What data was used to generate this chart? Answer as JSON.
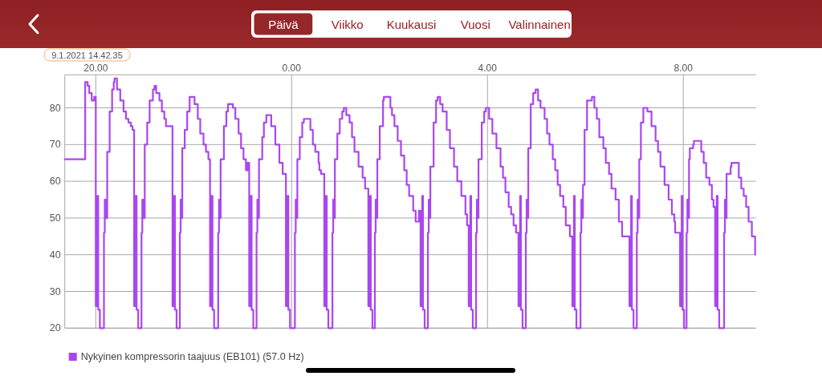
{
  "chart_data": {
    "type": "step",
    "annotations": [
      "Päivä",
      "Viikko",
      "Kuukausi",
      "Vuosi",
      "Valinnainen",
      "9.1.2021 14.42.35"
    ],
    "xlim": [
      "2021-01-08T19:22",
      "2021-01-09T09:29"
    ],
    "ylim": [
      20,
      89
    ],
    "xticks": [
      {
        "value": "2021-01-08T20:00",
        "label": "20.00"
      },
      {
        "value": "2021-01-09T00:00",
        "label": "0.00"
      },
      {
        "value": "2021-01-09T04:00",
        "label": "4.00"
      },
      {
        "value": "2021-01-09T08:00",
        "label": "8.00"
      }
    ],
    "yticks": [
      20,
      30,
      40,
      50,
      60,
      70,
      80
    ],
    "grid": true,
    "legend": "bottom left",
    "x": [
      "2021-01-08T19:22",
      "2021-01-08T19:47",
      "2021-01-08T19:50",
      "2021-01-08T19:52",
      "2021-01-08T19:55",
      "2021-01-08T19:58",
      "2021-01-08T20:00",
      "2021-01-08T20:02",
      "2021-01-08T20:03",
      "2021-01-08T20:05",
      "2021-01-08T20:10",
      "2021-01-08T20:11",
      "2021-01-08T20:12",
      "2021-01-08T20:14",
      "2021-01-08T20:17",
      "2021-01-08T20:20",
      "2021-01-08T20:22",
      "2021-01-08T20:23",
      "2021-01-08T20:26",
      "2021-01-08T20:30",
      "2021-01-08T20:34",
      "2021-01-08T20:37",
      "2021-01-08T20:40",
      "2021-01-08T20:43",
      "2021-01-08T20:45",
      "2021-01-08T20:47",
      "2021-01-08T20:49",
      "2021-01-08T20:50",
      "2021-01-08T20:52",
      "2021-01-08T20:56",
      "2021-01-08T20:57",
      "2021-01-08T20:58",
      "2021-01-08T21:00",
      "2021-01-08T21:03",
      "2021-01-08T21:06",
      "2021-01-08T21:10",
      "2021-01-08T21:12",
      "2021-01-08T21:14",
      "2021-01-08T21:18",
      "2021-01-08T21:21",
      "2021-01-08T21:24",
      "2021-01-08T21:26",
      "2021-01-08T21:34",
      "2021-01-08T21:36",
      "2021-01-08T21:37",
      "2021-01-08T21:39",
      "2021-01-08T21:43",
      "2021-01-08T21:44",
      "2021-01-08T21:45",
      "2021-01-08T21:46",
      "2021-01-08T21:49",
      "2021-01-08T21:52",
      "2021-01-08T21:55",
      "2021-01-08T22:01",
      "2021-01-08T22:05",
      "2021-01-08T22:08",
      "2021-01-08T22:12",
      "2021-01-08T22:15",
      "2021-01-08T22:18",
      "2021-01-08T22:20",
      "2021-01-08T22:22",
      "2021-01-08T22:23",
      "2021-01-08T22:25",
      "2021-01-08T22:30",
      "2021-01-08T22:31",
      "2021-01-08T22:32",
      "2021-01-08T22:33",
      "2021-01-08T22:37",
      "2021-01-08T22:40",
      "2021-01-08T22:42",
      "2021-01-08T22:48",
      "2021-01-08T22:51",
      "2021-01-08T22:55",
      "2021-01-08T22:58",
      "2021-01-08T23:01",
      "2021-01-08T23:04",
      "2021-01-08T23:06",
      "2021-01-08T23:08",
      "2021-01-08T23:10",
      "2021-01-08T23:11",
      "2021-01-08T23:13",
      "2021-01-08T23:17",
      "2021-01-08T23:18",
      "2021-01-08T23:19",
      "2021-01-08T23:20",
      "2021-01-08T23:24",
      "2021-01-08T23:26",
      "2021-01-08T23:29",
      "2021-01-08T23:35",
      "2021-01-08T23:40",
      "2021-01-08T23:45",
      "2021-01-08T23:49",
      "2021-01-08T23:53",
      "2021-01-08T23:55",
      "2021-01-08T23:56",
      "2021-01-08T23:58",
      "2021-01-09T00:04",
      "2021-01-09T00:05",
      "2021-01-09T00:06",
      "2021-01-09T00:07",
      "2021-01-09T00:10",
      "2021-01-09T00:13",
      "2021-01-09T00:15",
      "2021-01-09T00:23",
      "2021-01-09T00:26",
      "2021-01-09T00:29",
      "2021-01-09T00:33",
      "2021-01-09T00:34",
      "2021-01-09T00:36",
      "2021-01-09T00:40",
      "2021-01-09T00:42",
      "2021-01-09T00:43",
      "2021-01-09T00:45",
      "2021-01-09T00:50",
      "2021-01-09T00:51",
      "2021-01-09T00:52",
      "2021-01-09T00:53",
      "2021-01-09T00:56",
      "2021-01-09T00:59",
      "2021-01-09T01:02",
      "2021-01-09T01:04",
      "2021-01-09T01:07",
      "2021-01-09T01:11",
      "2021-01-09T01:14",
      "2021-01-09T01:17",
      "2021-01-09T01:22",
      "2021-01-09T01:27",
      "2021-01-09T01:30",
      "2021-01-09T01:34",
      "2021-01-09T01:36",
      "2021-01-09T01:37",
      "2021-01-09T01:39",
      "2021-01-09T01:42",
      "2021-01-09T01:43",
      "2021-01-09T01:44",
      "2021-01-09T01:45",
      "2021-01-09T01:48",
      "2021-01-09T01:52",
      "2021-01-09T01:53",
      "2021-01-09T02:01",
      "2021-01-09T02:03",
      "2021-01-09T02:06",
      "2021-01-09T02:10",
      "2021-01-09T02:14",
      "2021-01-09T02:18",
      "2021-01-09T02:21",
      "2021-01-09T02:24",
      "2021-01-09T02:29",
      "2021-01-09T02:32",
      "2021-01-09T02:36",
      "2021-01-09T02:38",
      "2021-01-09T02:40",
      "2021-01-09T02:41",
      "2021-01-09T02:43",
      "2021-01-09T02:47",
      "2021-01-09T02:48",
      "2021-01-09T02:49",
      "2021-01-09T02:50",
      "2021-01-09T02:54",
      "2021-01-09T02:57",
      "2021-01-09T02:59",
      "2021-01-09T03:02",
      "2021-01-09T03:05",
      "2021-01-09T03:10",
      "2021-01-09T03:14",
      "2021-01-09T03:19",
      "2021-01-09T03:23",
      "2021-01-09T03:28",
      "2021-01-09T03:33",
      "2021-01-09T03:35",
      "2021-01-09T03:37",
      "2021-01-09T03:39",
      "2021-01-09T03:40",
      "2021-01-09T03:42",
      "2021-01-09T03:46",
      "2021-01-09T03:47",
      "2021-01-09T03:48",
      "2021-01-09T03:49",
      "2021-01-09T03:53",
      "2021-01-09T03:56",
      "2021-01-09T03:58",
      "2021-01-09T04:02",
      "2021-01-09T04:06",
      "2021-01-09T04:11",
      "2021-01-09T04:16",
      "2021-01-09T04:19",
      "2021-01-09T04:22",
      "2021-01-09T04:26",
      "2021-01-09T04:29",
      "2021-01-09T04:32",
      "2021-01-09T04:35",
      "2021-01-09T04:38",
      "2021-01-09T04:40",
      "2021-01-09T04:41",
      "2021-01-09T04:43",
      "2021-01-09T04:47",
      "2021-01-09T04:48",
      "2021-01-09T04:49",
      "2021-01-09T04:50",
      "2021-01-09T04:53",
      "2021-01-09T04:56",
      "2021-01-09T04:59",
      "2021-01-09T05:02",
      "2021-01-09T05:05",
      "2021-01-09T05:10",
      "2021-01-09T05:13",
      "2021-01-09T05:16",
      "2021-01-09T05:20",
      "2021-01-09T05:23",
      "2021-01-09T05:26",
      "2021-01-09T05:29",
      "2021-01-09T05:33",
      "2021-01-09T05:36",
      "2021-01-09T05:41",
      "2021-01-09T05:44",
      "2021-01-09T05:46",
      "2021-01-09T05:47",
      "2021-01-09T05:49",
      "2021-01-09T05:54",
      "2021-01-09T05:55",
      "2021-01-09T05:56",
      "2021-01-09T05:57",
      "2021-01-09T05:59",
      "2021-01-09T06:02",
      "2021-01-09T06:08",
      "2021-01-09T06:11",
      "2021-01-09T06:14",
      "2021-01-09T06:17",
      "2021-01-09T06:22",
      "2021-01-09T06:25",
      "2021-01-09T06:29",
      "2021-01-09T06:32",
      "2021-01-09T06:37",
      "2021-01-09T06:41",
      "2021-01-09T06:45",
      "2021-01-09T06:54",
      "2021-01-09T06:56",
      "2021-01-09T06:57",
      "2021-01-09T06:59",
      "2021-01-09T07:03",
      "2021-01-09T07:04",
      "2021-01-09T07:05",
      "2021-01-09T07:06",
      "2021-01-09T07:08",
      "2021-01-09T07:11",
      "2021-01-09T07:16",
      "2021-01-09T07:21",
      "2021-01-09T07:26",
      "2021-01-09T07:29",
      "2021-01-09T07:32",
      "2021-01-09T07:37",
      "2021-01-09T07:42",
      "2021-01-09T07:46",
      "2021-01-09T07:49",
      "2021-01-09T07:50",
      "2021-01-09T07:56",
      "2021-01-09T07:58",
      "2021-01-09T07:59",
      "2021-01-09T08:01",
      "2021-01-09T08:04",
      "2021-01-09T08:05",
      "2021-01-09T08:06",
      "2021-01-09T08:07",
      "2021-01-09T08:08",
      "2021-01-09T08:12",
      "2021-01-09T08:13",
      "2021-01-09T08:22",
      "2021-01-09T08:25",
      "2021-01-09T08:28",
      "2021-01-09T08:32",
      "2021-01-09T08:35",
      "2021-01-09T08:37",
      "2021-01-09T08:39",
      "2021-01-09T08:41",
      "2021-01-09T08:42",
      "2021-01-09T08:44",
      "2021-01-09T08:50",
      "2021-01-09T08:51",
      "2021-01-09T08:52",
      "2021-01-09T08:53",
      "2021-01-09T08:58",
      "2021-01-09T08:59",
      "2021-01-09T09:08",
      "2021-01-09T09:11",
      "2021-01-09T09:14",
      "2021-01-09T09:17",
      "2021-01-09T09:20",
      "2021-01-09T09:24",
      "2021-01-09T09:28"
    ],
    "series": [
      {
        "name": "Nykyinen kompressorin taajuus (EB101) (57.0 Hz)",
        "color": "#aa46f0",
        "values": [
          66,
          87,
          86,
          84,
          82,
          83,
          26,
          56,
          25,
          20,
          46,
          55,
          50,
          68,
          79,
          85,
          87,
          88,
          85,
          82,
          79,
          77,
          76,
          75,
          74,
          26,
          56,
          25,
          20,
          46,
          55,
          50,
          70,
          76,
          82,
          85,
          86,
          84,
          82,
          79,
          77,
          75,
          26,
          56,
          25,
          20,
          46,
          55,
          50,
          69,
          74,
          79,
          83,
          81,
          77,
          73,
          70,
          68,
          66,
          26,
          56,
          25,
          20,
          46,
          55,
          50,
          66,
          75,
          79,
          81,
          80,
          77,
          73,
          69,
          66,
          63,
          65,
          26,
          56,
          25,
          20,
          46,
          55,
          50,
          66,
          72,
          76,
          78,
          75,
          70,
          65,
          62,
          26,
          56,
          25,
          20,
          46,
          55,
          50,
          66,
          72,
          76,
          77,
          74,
          70,
          68,
          65,
          63,
          62,
          26,
          56,
          25,
          20,
          46,
          55,
          50,
          66,
          73,
          77,
          79,
          80,
          78,
          76,
          72,
          68,
          64,
          61,
          58,
          26,
          56,
          25,
          20,
          46,
          55,
          50,
          66,
          75,
          82,
          83,
          80,
          78,
          75,
          71,
          67,
          63,
          59,
          56,
          52,
          49,
          52,
          26,
          56,
          25,
          20,
          46,
          55,
          50,
          64,
          76,
          82,
          83,
          81,
          79,
          74,
          69,
          64,
          60,
          56,
          51,
          48,
          26,
          56,
          25,
          20,
          46,
          55,
          50,
          66,
          76,
          79,
          80,
          77,
          73,
          69,
          64,
          61,
          57,
          53,
          51,
          48,
          46,
          26,
          56,
          25,
          20,
          46,
          55,
          50,
          69,
          81,
          84,
          85,
          82,
          80,
          77,
          73,
          70,
          66,
          63,
          59,
          56,
          53,
          48,
          45,
          26,
          56,
          25,
          20,
          46,
          55,
          50,
          59,
          74,
          82,
          83,
          80,
          77,
          72,
          69,
          65,
          62,
          58,
          55,
          49,
          45,
          26,
          56,
          25,
          20,
          46,
          55,
          50,
          66,
          76,
          80,
          79,
          75,
          71,
          68,
          64,
          59,
          55,
          51,
          49,
          46,
          26,
          56,
          25,
          20,
          46,
          55,
          50,
          66,
          69,
          70,
          71,
          68,
          65,
          61,
          59,
          55,
          53,
          26,
          56,
          25,
          20,
          46,
          55,
          50,
          62,
          64,
          65,
          61,
          58,
          56,
          53,
          49,
          45,
          40
        ]
      }
    ]
  }
}
